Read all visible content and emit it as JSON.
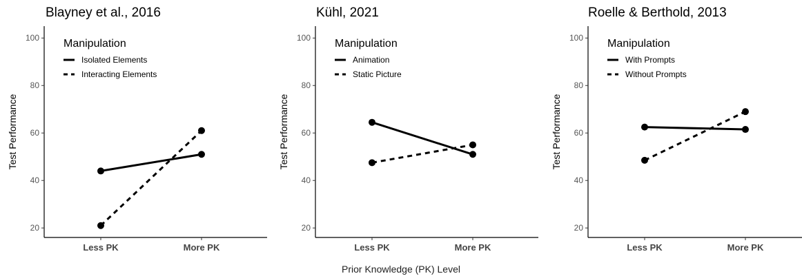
{
  "figure": {
    "xlabel": "Prior Knowledge (PK) Level",
    "ylabel": "Test Performance",
    "legend_title": "Manipulation"
  },
  "chart_data": [
    {
      "type": "line",
      "title": "Blayney et al., 2016",
      "categories": [
        "Less PK",
        "More PK"
      ],
      "ylim": [
        16,
        105
      ],
      "yticks": [
        20,
        40,
        60,
        80,
        100
      ],
      "series": [
        {
          "name": "Isolated Elements",
          "style": "solid",
          "values": [
            44,
            51
          ]
        },
        {
          "name": "Interacting Elements",
          "style": "dashed",
          "values": [
            21,
            61
          ]
        }
      ]
    },
    {
      "type": "line",
      "title": "Kühl, 2021",
      "categories": [
        "Less PK",
        "More PK"
      ],
      "ylim": [
        16,
        105
      ],
      "yticks": [
        20,
        40,
        60,
        80,
        100
      ],
      "series": [
        {
          "name": "Animation",
          "style": "solid",
          "values": [
            64.5,
            51
          ]
        },
        {
          "name": "Static Picture",
          "style": "dashed",
          "values": [
            47.5,
            55
          ]
        }
      ]
    },
    {
      "type": "line",
      "title": "Roelle & Berthold, 2013",
      "categories": [
        "Less PK",
        "More PK"
      ],
      "ylim": [
        16,
        105
      ],
      "yticks": [
        20,
        40,
        60,
        80,
        100
      ],
      "series": [
        {
          "name": "With Prompts",
          "style": "solid",
          "values": [
            62.5,
            61.5
          ]
        },
        {
          "name": "Without Prompts",
          "style": "dashed",
          "values": [
            48.5,
            69
          ]
        }
      ]
    }
  ]
}
